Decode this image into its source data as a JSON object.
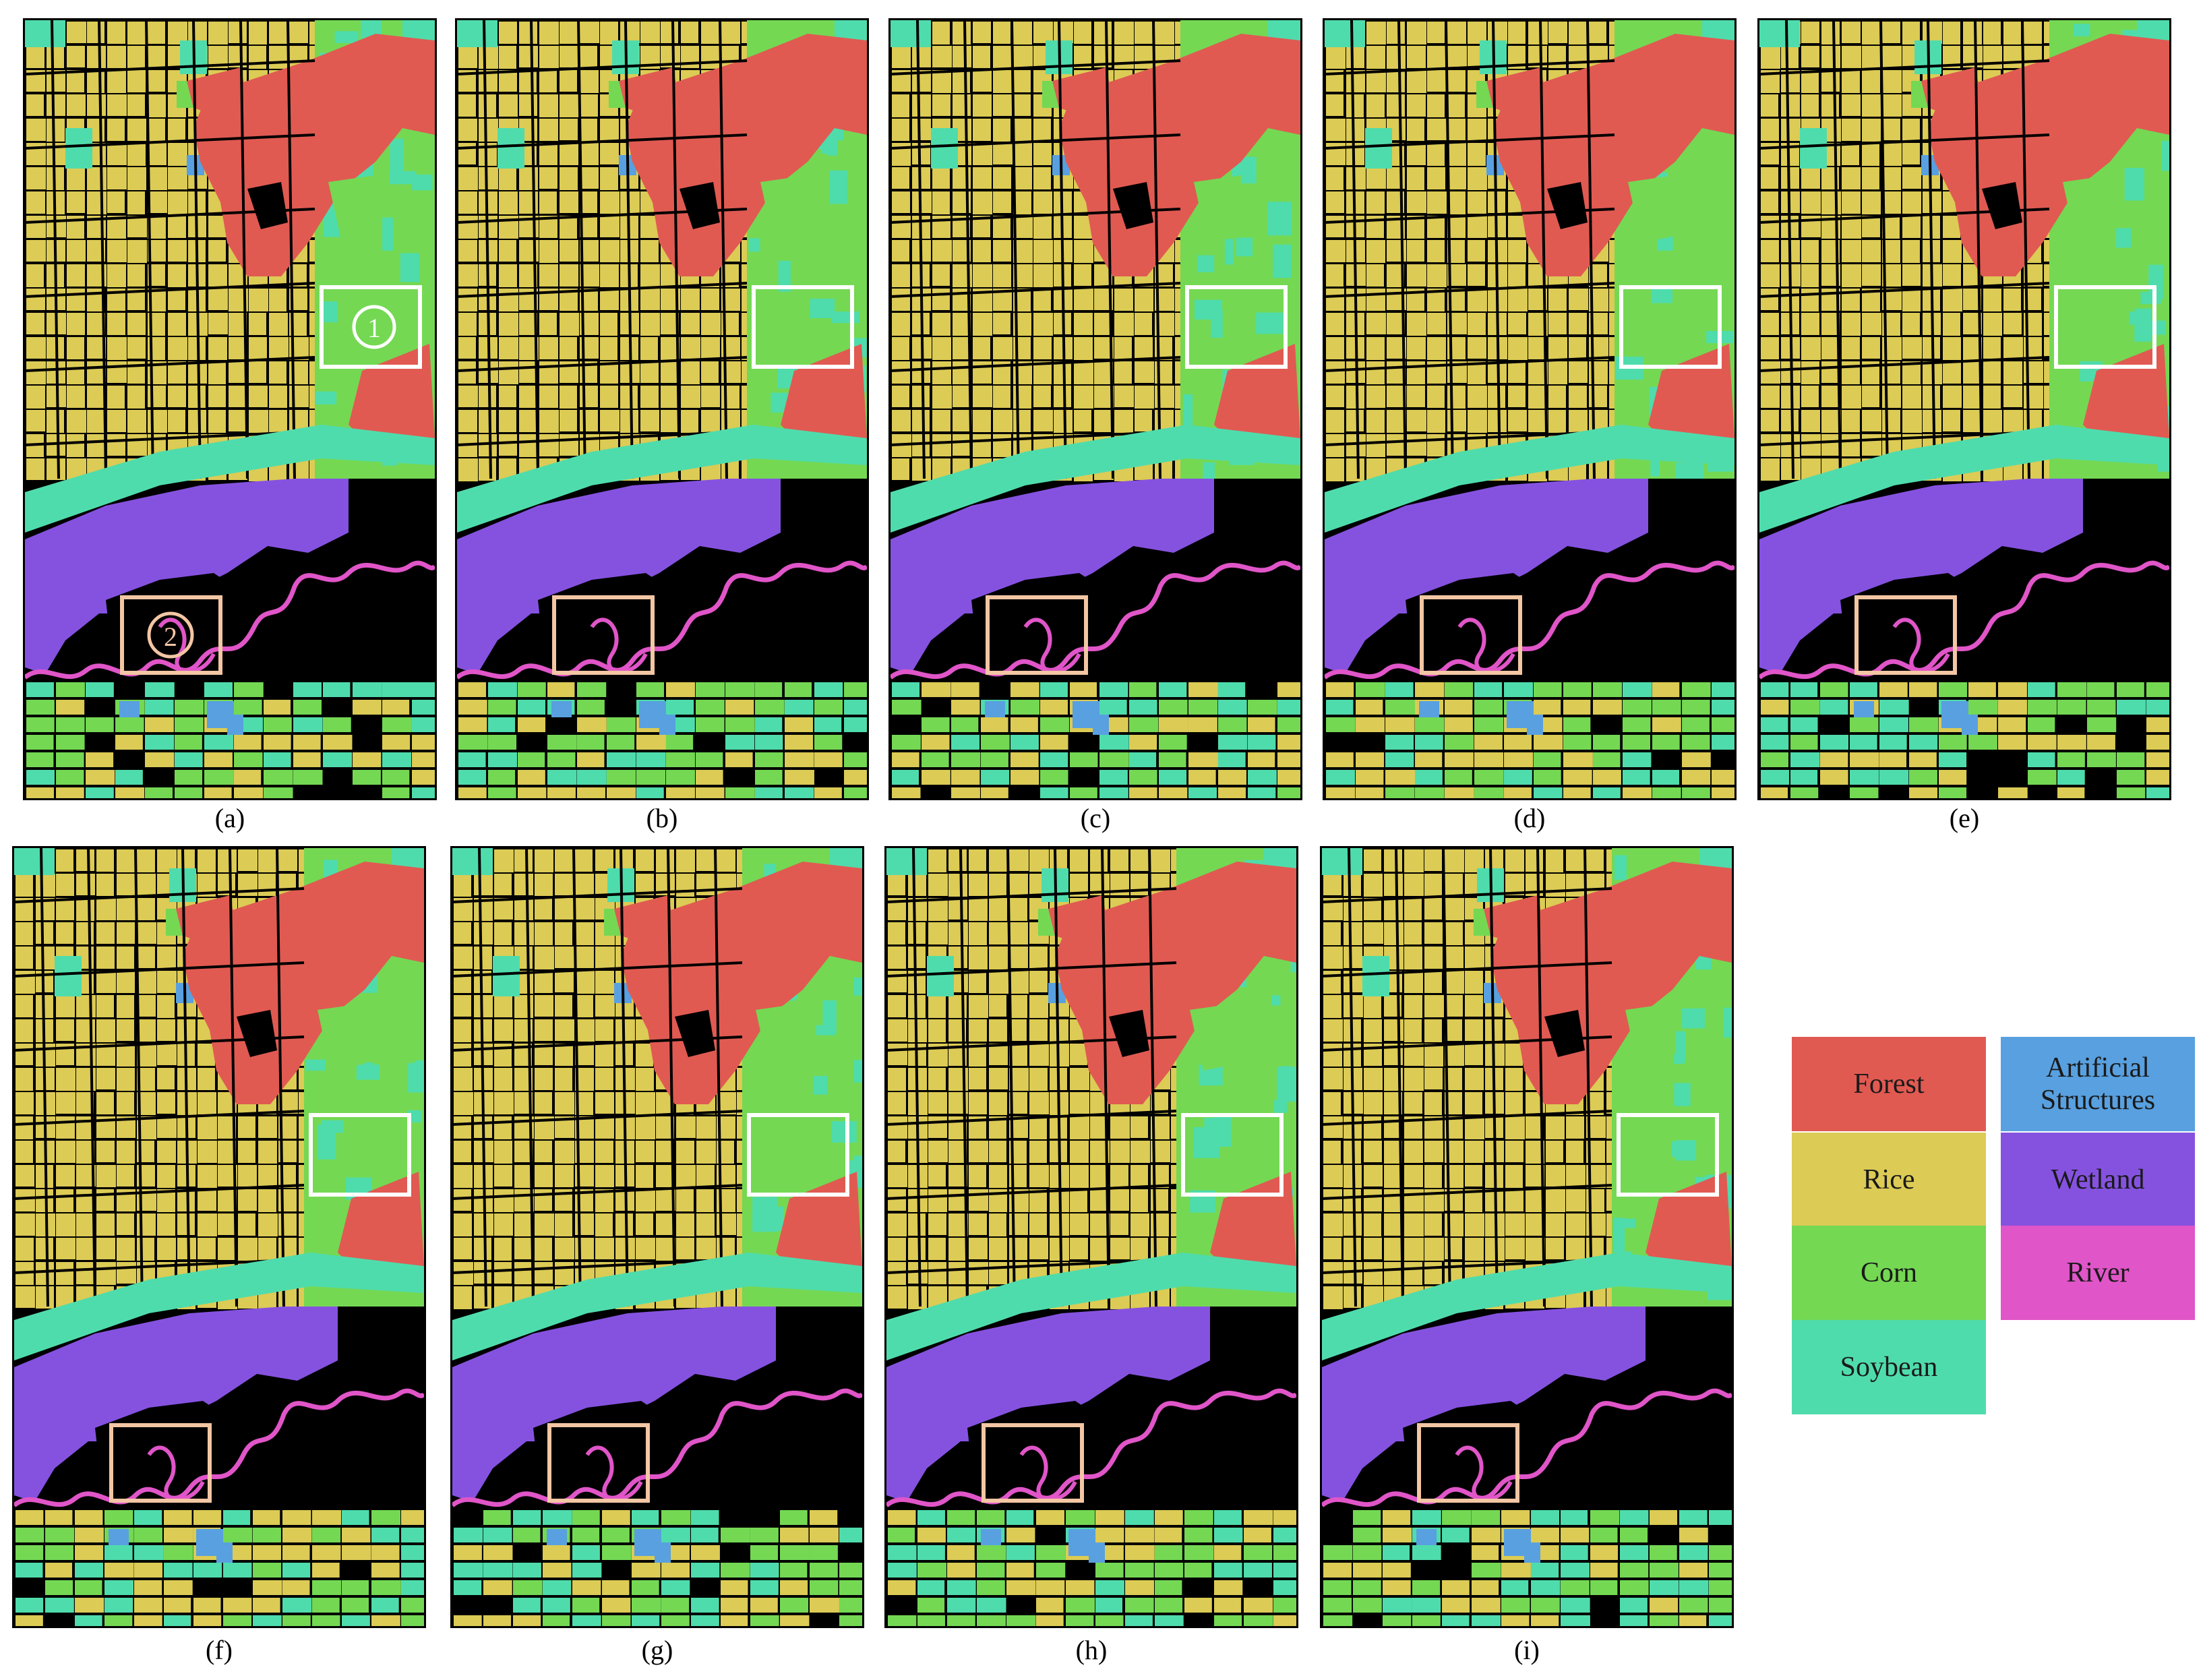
{
  "figure": {
    "panels": [
      {
        "id": "a",
        "caption": "(a)",
        "markers": [
          "1",
          "2"
        ]
      },
      {
        "id": "b",
        "caption": "(b)",
        "markers": []
      },
      {
        "id": "c",
        "caption": "(c)",
        "markers": []
      },
      {
        "id": "d",
        "caption": "(d)",
        "markers": []
      },
      {
        "id": "e",
        "caption": "(e)",
        "markers": []
      },
      {
        "id": "f",
        "caption": "(f)",
        "markers": []
      },
      {
        "id": "g",
        "caption": "(g)",
        "markers": []
      },
      {
        "id": "h",
        "caption": "(h)",
        "markers": []
      },
      {
        "id": "i",
        "caption": "(i)",
        "markers": []
      }
    ],
    "highlight_colors": {
      "box1": "#ffffff",
      "box2": "#f3c6a4"
    }
  },
  "legend": {
    "items": [
      {
        "label": "Forest",
        "color": "#e05a52"
      },
      {
        "label": "Rice",
        "color": "#dccb55"
      },
      {
        "label": "Corn",
        "color": "#74d853"
      },
      {
        "label": "Soybean",
        "color": "#4fdcac"
      },
      {
        "label": "Artificial Structures",
        "color": "#58a0e0"
      },
      {
        "label": "Wetland",
        "color": "#8552e0"
      },
      {
        "label": "River",
        "color": "#e055c8"
      }
    ]
  }
}
